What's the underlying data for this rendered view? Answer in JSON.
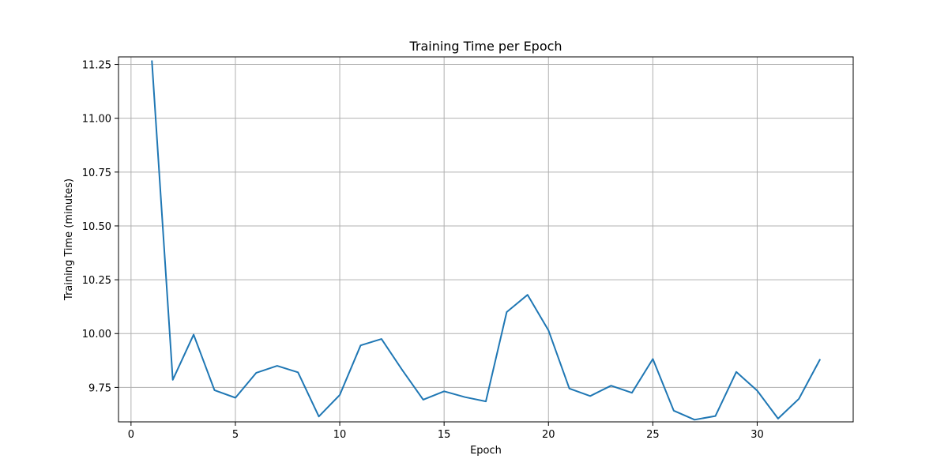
{
  "chart_data": {
    "type": "line",
    "title": "Training Time per Epoch",
    "xlabel": "Epoch",
    "ylabel": "Training Time (minutes)",
    "xlim": [
      -0.6,
      34.6
    ],
    "ylim": [
      9.59,
      11.285
    ],
    "xticks": [
      0,
      5,
      10,
      15,
      20,
      25,
      30
    ],
    "yticks": [
      9.75,
      10.0,
      10.25,
      10.5,
      10.75,
      11.0,
      11.25
    ],
    "ytick_labels": [
      "9.75",
      "10.00",
      "10.25",
      "10.50",
      "10.75",
      "11.00",
      "11.25"
    ],
    "grid": true,
    "line_color": "#1f77b4",
    "x": [
      1,
      2,
      3,
      4,
      5,
      6,
      7,
      8,
      9,
      10,
      11,
      12,
      13,
      14,
      15,
      16,
      17,
      18,
      19,
      20,
      21,
      22,
      23,
      24,
      25,
      26,
      27,
      28,
      29,
      30,
      31,
      32,
      33
    ],
    "y": [
      11.265,
      9.785,
      9.995,
      9.737,
      9.702,
      9.818,
      9.85,
      9.82,
      9.615,
      9.715,
      9.945,
      9.975,
      9.83,
      9.693,
      9.732,
      9.705,
      9.685,
      10.1,
      10.18,
      10.015,
      9.745,
      9.71,
      9.758,
      9.725,
      9.882,
      9.642,
      9.6,
      9.617,
      9.822,
      9.735,
      9.605,
      9.697,
      9.878
    ]
  }
}
